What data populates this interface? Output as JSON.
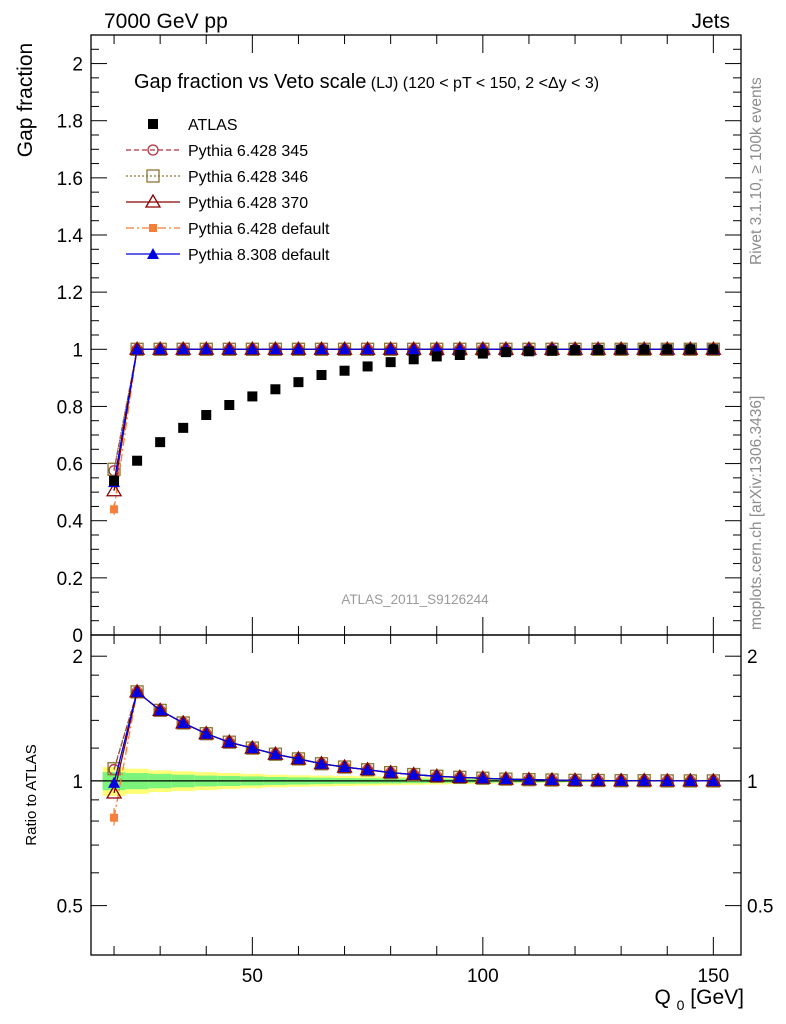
{
  "header": {
    "left": "7000 GeV pp",
    "right": "Jets"
  },
  "side_text": {
    "rivet": "Rivet 3.1.10, ≥ 100k events",
    "mcplots": "mcplots.cern.ch [arXiv:1306.3436]"
  },
  "watermark": "ATLAS_2011_S9126244",
  "chart_data": {
    "type": "scatter",
    "title_main": "Gap fraction vs Veto scale",
    "title_sub": "(LJ) (120 < pT < 150, 2 <Δy < 3)",
    "ylabel": "Gap fraction",
    "xlabel_main": "Q",
    "xlabel_sub": "0",
    "xlabel_unit": " [GeV]",
    "ratio_ylabel": "Ratio to ATLAS",
    "x": [
      20,
      25,
      30,
      35,
      40,
      45,
      50,
      55,
      60,
      65,
      70,
      75,
      80,
      85,
      90,
      95,
      100,
      105,
      110,
      115,
      120,
      125,
      130,
      135,
      140,
      145,
      150
    ],
    "xlim": [
      15,
      156
    ],
    "ylim": [
      0,
      2.1
    ],
    "ratio_ylim": [
      0.38,
      2.25
    ],
    "x_ticks": [
      50,
      100,
      150
    ],
    "y_ticks": [
      0,
      0.2,
      0.4,
      0.6,
      0.8,
      1,
      1.2,
      1.4,
      1.6,
      1.8,
      2
    ],
    "y_tick_labels": [
      "0",
      "0.2",
      "0.4",
      "0.6",
      "0.8",
      "1",
      "1.2",
      "1.4",
      "1.6",
      "1.8",
      "2"
    ],
    "ratio_ticks": [
      0.5,
      1,
      2
    ],
    "ratio_tick_labels": [
      "0.5",
      "1",
      "2"
    ],
    "legend_position": "top-left",
    "reference": {
      "name": "ATLAS",
      "color": "#000000",
      "values": [
        0.54,
        0.61,
        0.675,
        0.725,
        0.77,
        0.805,
        0.835,
        0.86,
        0.885,
        0.91,
        0.925,
        0.94,
        0.955,
        0.965,
        0.975,
        0.98,
        0.985,
        0.99,
        0.993,
        0.995,
        0.997,
        0.998,
        0.999,
        0.999,
        1.0,
        1.0,
        1.0
      ],
      "band_outer": [
        0.08,
        0.07,
        0.06,
        0.055,
        0.05,
        0.045,
        0.04,
        0.035,
        0.032,
        0.03,
        0.028,
        0.026,
        0.024,
        0.022,
        0.02,
        0.018,
        0.016,
        0.014,
        0.012,
        0.01,
        0.008,
        0.006,
        0.005,
        0.004,
        0.003,
        0.003,
        0.003
      ],
      "band_inner": [
        0.05,
        0.045,
        0.04,
        0.035,
        0.03,
        0.028,
        0.025,
        0.022,
        0.02,
        0.018,
        0.016,
        0.015,
        0.014,
        0.013,
        0.012,
        0.011,
        0.01,
        0.009,
        0.008,
        0.007,
        0.006,
        0.005,
        0.004,
        0.003,
        0.002,
        0.002,
        0.002
      ],
      "band_outer_color": "#ffff77",
      "band_inner_color": "#7cf47c"
    },
    "series": [
      {
        "name": "Pythia 6.428 345",
        "color": "#b0313c",
        "dash": "5,3",
        "marker": "circle-open",
        "values": [
          0.575,
          1,
          1,
          1,
          1,
          1,
          1,
          1,
          1,
          1,
          1,
          1,
          1,
          1,
          1,
          1,
          1,
          1,
          1,
          1,
          1,
          1,
          1,
          1,
          1,
          1,
          1
        ],
        "ratio": [
          1.065,
          1.64,
          1.48,
          1.38,
          1.3,
          1.24,
          1.2,
          1.16,
          1.13,
          1.1,
          1.08,
          1.064,
          1.047,
          1.036,
          1.026,
          1.02,
          1.015,
          1.01,
          1.007,
          1.005,
          1.003,
          1.002,
          1.001,
          1.001,
          1.0,
          1.0,
          1.0
        ]
      },
      {
        "name": "Pythia 6.428 346",
        "color": "#8a7632",
        "dash": "2,2",
        "marker": "square-open",
        "values": [
          0.58,
          1,
          1,
          1,
          1,
          1,
          1,
          1,
          1,
          1,
          1,
          1,
          1,
          1,
          1,
          1,
          1,
          1,
          1,
          1,
          1,
          1,
          1,
          1,
          1,
          1,
          1
        ],
        "ratio": [
          1.07,
          1.64,
          1.48,
          1.38,
          1.3,
          1.24,
          1.2,
          1.16,
          1.13,
          1.1,
          1.08,
          1.064,
          1.047,
          1.036,
          1.026,
          1.02,
          1.015,
          1.01,
          1.007,
          1.005,
          1.003,
          1.002,
          1.001,
          1.001,
          1.0,
          1.0,
          1.0
        ]
      },
      {
        "name": "Pythia 6.428 370",
        "color": "#8b0000",
        "dash": "",
        "marker": "triangle-open",
        "values": [
          0.505,
          1,
          1,
          1,
          1,
          1,
          1,
          1,
          1,
          1,
          1,
          1,
          1,
          1,
          1,
          1,
          1,
          1,
          1,
          1,
          1,
          1,
          1,
          1,
          1,
          1,
          1
        ],
        "ratio": [
          0.935,
          1.64,
          1.48,
          1.38,
          1.3,
          1.24,
          1.2,
          1.16,
          1.13,
          1.1,
          1.08,
          1.064,
          1.047,
          1.036,
          1.026,
          1.02,
          1.015,
          1.01,
          1.007,
          1.005,
          1.003,
          1.002,
          1.001,
          1.001,
          1.0,
          1.0,
          1.0
        ]
      },
      {
        "name": "Pythia 6.428 default",
        "color": "#f57f3a",
        "dash": "8,3,2,3",
        "marker": "square-filled",
        "values": [
          0.44,
          1,
          1,
          1,
          1,
          1,
          1,
          1,
          1,
          1,
          1,
          1,
          1,
          1,
          1,
          1,
          1,
          1,
          1,
          1,
          1,
          1,
          1,
          1,
          1,
          1,
          1
        ],
        "ratio": [
          0.815,
          1.64,
          1.48,
          1.38,
          1.3,
          1.24,
          1.2,
          1.16,
          1.13,
          1.1,
          1.08,
          1.064,
          1.047,
          1.036,
          1.026,
          1.02,
          1.015,
          1.01,
          1.007,
          1.005,
          1.003,
          1.002,
          1.001,
          1.001,
          1.0,
          1.0,
          1.0
        ]
      },
      {
        "name": "Pythia 8.308 default",
        "color": "#0000e0",
        "dash": "",
        "marker": "triangle-filled",
        "values": [
          0.535,
          1,
          1,
          1,
          1,
          1,
          1,
          1,
          1,
          1,
          1,
          1,
          1,
          1,
          1,
          1,
          1,
          1,
          1,
          1,
          1,
          1,
          1,
          1,
          1,
          1,
          1
        ],
        "ratio": [
          0.99,
          1.64,
          1.48,
          1.38,
          1.3,
          1.24,
          1.2,
          1.16,
          1.13,
          1.1,
          1.08,
          1.064,
          1.047,
          1.036,
          1.026,
          1.02,
          1.015,
          1.01,
          1.007,
          1.005,
          1.003,
          1.002,
          1.001,
          1.001,
          1.0,
          1.0,
          1.0
        ]
      }
    ]
  }
}
